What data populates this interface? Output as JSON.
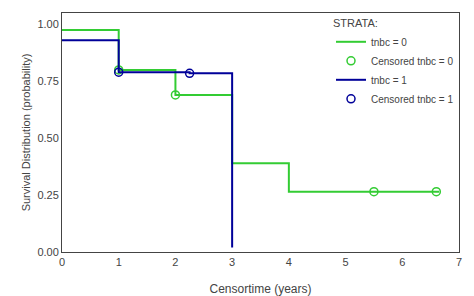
{
  "chart_data": {
    "type": "line",
    "x_label": "Censortime (years)",
    "y_label": "Survival Distribution (probability)",
    "series": [
      {
        "name": "tnbc = 0",
        "type": "step",
        "color": "#33cc33",
        "x": [
          0,
          1,
          1,
          2,
          2,
          3,
          3,
          4,
          4,
          6.65
        ],
        "values": [
          0.975,
          0.975,
          0.8,
          0.8,
          0.69,
          0.69,
          0.39,
          0.39,
          0.265,
          0.265
        ]
      },
      {
        "name": "Censored tnbc = 0",
        "type": "scatter",
        "marker": "circle-open",
        "color": "#33cc33",
        "x": [
          1.0,
          2.0,
          5.5,
          6.6
        ],
        "values": [
          0.8,
          0.69,
          0.265,
          0.265
        ]
      },
      {
        "name": "tnbc = 1",
        "type": "step",
        "color": "#000099",
        "x": [
          0,
          1,
          1,
          2.25,
          2.25,
          3.0,
          3.0
        ],
        "values": [
          0.93,
          0.93,
          0.79,
          0.79,
          0.785,
          0.785,
          0.02
        ]
      },
      {
        "name": "Censored tnbc = 1",
        "type": "scatter",
        "marker": "circle-open",
        "color": "#000099",
        "x": [
          1.0,
          2.25
        ],
        "values": [
          0.79,
          0.785
        ]
      }
    ],
    "xlim": [
      0,
      7
    ],
    "ylim": [
      0,
      1.05
    ],
    "xticks": [
      0,
      1,
      2,
      3,
      4,
      5,
      6,
      7
    ],
    "yticks": [
      {
        "value": 0,
        "label": "0.00"
      },
      0.25,
      {
        "value": 0.5,
        "label": "0.50"
      },
      0.75,
      {
        "value": 1,
        "label": "1.00"
      }
    ],
    "grid": false,
    "legend": "upper right",
    "legend_title": "STRATA:"
  }
}
